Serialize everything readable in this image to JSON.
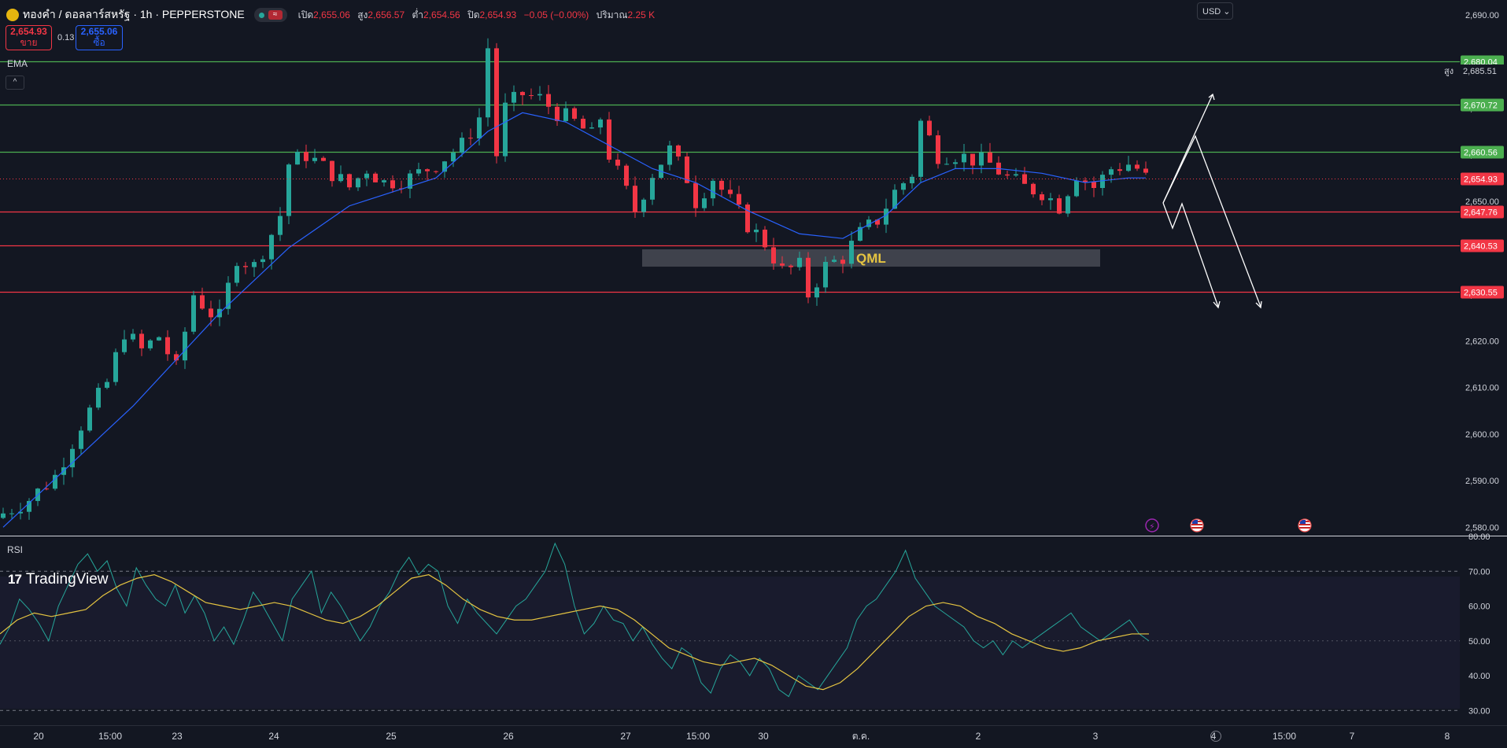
{
  "header": {
    "symbol": "ทองคำ / ดอลลาร์สหรัฐ · 1h · PEPPERSTONE",
    "wave_icon": "≈",
    "open_label": "เปิด",
    "open_value": "2,655.06",
    "high_label": "สูง",
    "high_value": "2,656.57",
    "low_label": "ต่ำ",
    "low_value": "2,654.56",
    "close_label": "ปิด",
    "close_value": "2,654.93",
    "change_value": "−0.05 (−0.00%)",
    "volume_label": "ปริมาณ",
    "volume_value": "2.25 K"
  },
  "trade": {
    "sell_price": "2,654.93",
    "sell_label": "ขาย",
    "spread": "0.13",
    "buy_price": "2,655.06",
    "buy_label": "ซื้อ"
  },
  "indicators": {
    "ema_label": "EMA",
    "rsi_label": "RSI",
    "collapse_icon": "^"
  },
  "currency": "USD",
  "brand": {
    "logo_mark": "17",
    "name": "TradingView"
  },
  "icons": [
    "gold-symbol-icon",
    "wave-icon",
    "collapse-icon",
    "lightning-event-icon",
    "us-flag-event-icon",
    "settings-gear-icon"
  ],
  "colors": {
    "background": "#131722",
    "up": "#26a69a",
    "down": "#f23645",
    "ema": "#2962ff",
    "rsi": "#26a69a",
    "rsi_ma": "#e5c441",
    "support": "#4caf50",
    "resistance": "#f23645"
  },
  "chart_data": [
    {
      "type": "candlestick",
      "title": "ทองคำ / ดอลลาร์สหรัฐ · 1h · PEPPERSTONE",
      "y_ticks": [
        "2,690.00",
        "2,680.00",
        "2,670.00",
        "2,660.00",
        "2,650.00",
        "2,640.00",
        "2,630.00",
        "2,620.00",
        "2,610.00",
        "2,600.00",
        "2,590.00",
        "2,580.00"
      ],
      "x_ticks": [
        "20",
        "15:00",
        "23",
        "24",
        "25",
        "26",
        "27",
        "15:00",
        "30",
        "ต.ค.",
        "2",
        "3",
        "4",
        "15:00",
        "7",
        "8"
      ],
      "ylim": [
        2578.2,
        2693.2
      ],
      "close_path": [
        [
          0,
          2583
        ],
        [
          3,
          2586
        ],
        [
          6,
          2591
        ],
        [
          9,
          2602
        ],
        [
          12,
          2611
        ],
        [
          14,
          2622
        ],
        [
          16,
          2618
        ],
        [
          18,
          2621
        ],
        [
          20,
          2614
        ],
        [
          22,
          2630
        ],
        [
          24,
          2626
        ],
        [
          25,
          2625
        ],
        [
          27,
          2638
        ],
        [
          29,
          2636
        ],
        [
          31,
          2643
        ],
        [
          32,
          2647
        ],
        [
          33,
          2658
        ],
        [
          35,
          2660
        ],
        [
          38,
          2656
        ],
        [
          40,
          2653
        ],
        [
          42,
          2657
        ],
        [
          44,
          2654
        ],
        [
          47,
          2655
        ],
        [
          50,
          2658
        ],
        [
          53,
          2662
        ],
        [
          55,
          2668
        ],
        [
          56,
          2683
        ],
        [
          57,
          2660
        ],
        [
          58,
          2670
        ],
        [
          60,
          2673
        ],
        [
          62,
          2672
        ],
        [
          64,
          2669
        ],
        [
          66,
          2667
        ],
        [
          68,
          2664
        ],
        [
          69,
          2668
        ],
        [
          70,
          2660
        ],
        [
          71,
          2656
        ],
        [
          73,
          2648
        ],
        [
          75,
          2656
        ],
        [
          77,
          2661
        ],
        [
          79,
          2655
        ],
        [
          80,
          2650
        ],
        [
          82,
          2655
        ],
        [
          84,
          2650
        ],
        [
          86,
          2645
        ],
        [
          88,
          2641
        ],
        [
          90,
          2635
        ],
        [
          92,
          2636
        ],
        [
          93,
          2630
        ],
        [
          95,
          2636
        ],
        [
          97,
          2638
        ],
        [
          99,
          2643
        ],
        [
          101,
          2646
        ],
        [
          103,
          2652
        ],
        [
          105,
          2656
        ],
        [
          106,
          2667
        ],
        [
          108,
          2660
        ],
        [
          110,
          2660
        ],
        [
          112,
          2659
        ],
        [
          114,
          2658
        ],
        [
          116,
          2655
        ],
        [
          118,
          2653
        ],
        [
          120,
          2652
        ],
        [
          122,
          2649
        ],
        [
          124,
          2656
        ],
        [
          126,
          2653
        ],
        [
          128,
          2657
        ],
        [
          130,
          2658
        ],
        [
          131,
          2657
        ],
        [
          132,
          2655
        ]
      ],
      "ema_path": [
        [
          0,
          2580
        ],
        [
          15,
          2606
        ],
        [
          25,
          2626
        ],
        [
          33,
          2640
        ],
        [
          40,
          2649
        ],
        [
          50,
          2655
        ],
        [
          56,
          2665
        ],
        [
          60,
          2669
        ],
        [
          65,
          2667
        ],
        [
          70,
          2662
        ],
        [
          75,
          2657
        ],
        [
          80,
          2654
        ],
        [
          86,
          2648
        ],
        [
          92,
          2643
        ],
        [
          97,
          2642
        ],
        [
          102,
          2647
        ],
        [
          106,
          2654
        ],
        [
          110,
          2657
        ],
        [
          115,
          2657
        ],
        [
          120,
          2656
        ],
        [
          125,
          2654
        ],
        [
          130,
          2655
        ],
        [
          132,
          2655
        ]
      ],
      "current_price": 2654.93,
      "high_marker": {
        "label": "สูง",
        "value": "2,685.51",
        "price": 2685.51
      },
      "levels": [
        {
          "value": "2,680.04",
          "price": 2680.04,
          "kind": "support"
        },
        {
          "value": "2,670.72",
          "price": 2670.72,
          "kind": "support"
        },
        {
          "value": "2,660.56",
          "price": 2660.56,
          "kind": "support"
        },
        {
          "value": "2,647.76",
          "price": 2647.76,
          "kind": "resistance"
        },
        {
          "value": "2,640.53",
          "price": 2640.53,
          "kind": "resistance"
        },
        {
          "value": "2,630.55",
          "price": 2630.55,
          "kind": "resistance"
        }
      ],
      "annotation": {
        "text": "QML",
        "price_top": 2644.3,
        "price_bottom": 2640.3
      },
      "projections": "white scenario arrows: up to 2,680.04 then down to 2,630.55"
    },
    {
      "type": "line",
      "title": "RSI",
      "y_ticks": [
        "80.00",
        "70.00",
        "60.00",
        "50.00",
        "40.00",
        "30.00"
      ],
      "ylim": [
        26,
        80
      ],
      "band": [
        30,
        70
      ],
      "rsi": [
        49,
        54,
        62,
        59,
        55,
        50,
        60,
        66,
        72,
        75,
        70,
        73,
        65,
        60,
        71,
        66,
        62,
        60,
        66,
        58,
        63,
        58,
        50,
        54,
        49,
        56,
        64,
        60,
        55,
        50,
        62,
        66,
        70,
        58,
        64,
        60,
        55,
        50,
        54,
        60,
        64,
        70,
        74,
        69,
        72,
        70,
        60,
        55,
        62,
        58,
        55,
        52,
        56,
        60,
        62,
        66,
        70,
        78,
        72,
        60,
        52,
        55,
        60,
        56,
        55,
        50,
        54,
        49,
        45,
        42,
        48,
        46,
        38,
        35,
        42,
        46,
        44,
        40,
        45,
        42,
        36,
        34,
        40,
        38,
        36,
        40,
        44,
        48,
        56,
        60,
        62,
        66,
        70,
        76,
        68,
        64,
        60,
        58,
        56,
        54,
        50,
        48,
        50,
        46,
        50,
        48,
        50,
        52,
        54,
        56,
        58,
        54,
        52,
        50,
        52,
        54,
        56,
        52,
        50
      ],
      "rsi_ma": [
        52,
        56,
        58,
        57,
        58,
        59,
        63,
        66,
        68,
        69,
        67,
        64,
        61,
        60,
        59,
        60,
        61,
        60,
        58,
        56,
        55,
        57,
        60,
        64,
        68,
        69,
        66,
        62,
        59,
        57,
        56,
        56,
        57,
        58,
        59,
        60,
        59,
        56,
        52,
        48,
        46,
        44,
        43,
        44,
        45,
        43,
        40,
        37,
        36,
        38,
        42,
        47,
        52,
        57,
        60,
        61,
        60,
        57,
        55,
        52,
        50,
        48,
        47,
        48,
        50,
        51,
        52,
        52
      ]
    }
  ]
}
